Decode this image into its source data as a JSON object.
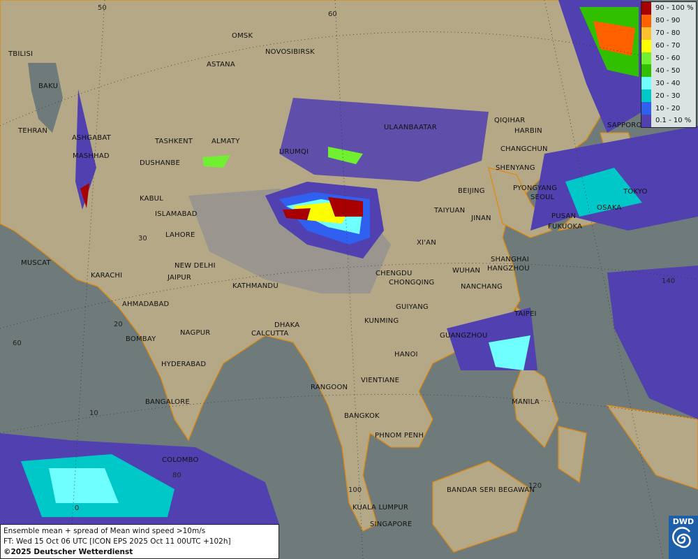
{
  "title": "Ensemble mean + spread of Mean wind speed >10m/s",
  "forecast_time": "FT: Wed 15 Oct 06 UTC [ICON EPS 2025 Oct 11 00UTC +102h]",
  "copyright": "©2025 Deutscher Wetterdienst",
  "logo_text": "DWD",
  "legend": [
    {
      "label": "90 - 100 %",
      "color": "#a80000"
    },
    {
      "label": "80 - 90",
      "color": "#ff6000"
    },
    {
      "label": "70 - 80",
      "color": "#ffc030"
    },
    {
      "label": "60 - 70",
      "color": "#ffff00"
    },
    {
      "label": "50 - 60",
      "color": "#70f030"
    },
    {
      "label": "40 - 50",
      "color": "#30c000"
    },
    {
      "label": "30 - 40",
      "color": "#70ffff"
    },
    {
      "label": "20 - 30",
      "color": "#00c8c8"
    },
    {
      "label": "10 - 20",
      "color": "#3060f0"
    },
    {
      "label": "0.1 - 10 %",
      "color": "#5040b0"
    }
  ],
  "grid_labels": [
    "50",
    "60",
    "30",
    "20",
    "60",
    "10",
    "140",
    "80",
    "0",
    "120",
    "100"
  ],
  "cities": [
    "OMSK",
    "ASTANA",
    "NOVOSIBIRSK",
    "TBILISI",
    "BAKU",
    "TEHRAN",
    "ASHGABAT",
    "MASHHAD",
    "TASHKENT",
    "ALMATY",
    "DUSHANBE",
    "URUMQI",
    "ULAANBAATAR",
    "QIQIHAR",
    "HARBIN",
    "CHANGCHUN",
    "SHENYANG",
    "BEIJING",
    "PYONGYANG",
    "SEOUL",
    "TOKYO",
    "OSAKA",
    "SAPPORO",
    "PUSAN",
    "FUKUOKA",
    "KABUL",
    "ISLAMABAD",
    "LAHORE",
    "TAIYUAN",
    "JINAN",
    "XI'AN",
    "NEW DELHI",
    "JAIPUR",
    "KATHMANDU",
    "MUSCAT",
    "KARACHI",
    "AHMADABAD",
    "CHENGDU",
    "CHONGQING",
    "WUHAN",
    "SHANGHAI",
    "HANGZHOU",
    "NANCHANG",
    "TAIPEI",
    "GUIYANG",
    "KUNMING",
    "DHAKA",
    "CALCUTTA",
    "NAGPUR",
    "BOMBAY",
    "GUANGZHOU",
    "HANOI",
    "HYDERABAD",
    "RANGOON",
    "VIENTIANE",
    "BANGALORE",
    "MANILA",
    "BANGKOK",
    "PHNOM PENH",
    "COLOMBO",
    "BANDAR SERI BEGAWAN",
    "KUALA LUMPUR",
    "SINGAPORE"
  ]
}
